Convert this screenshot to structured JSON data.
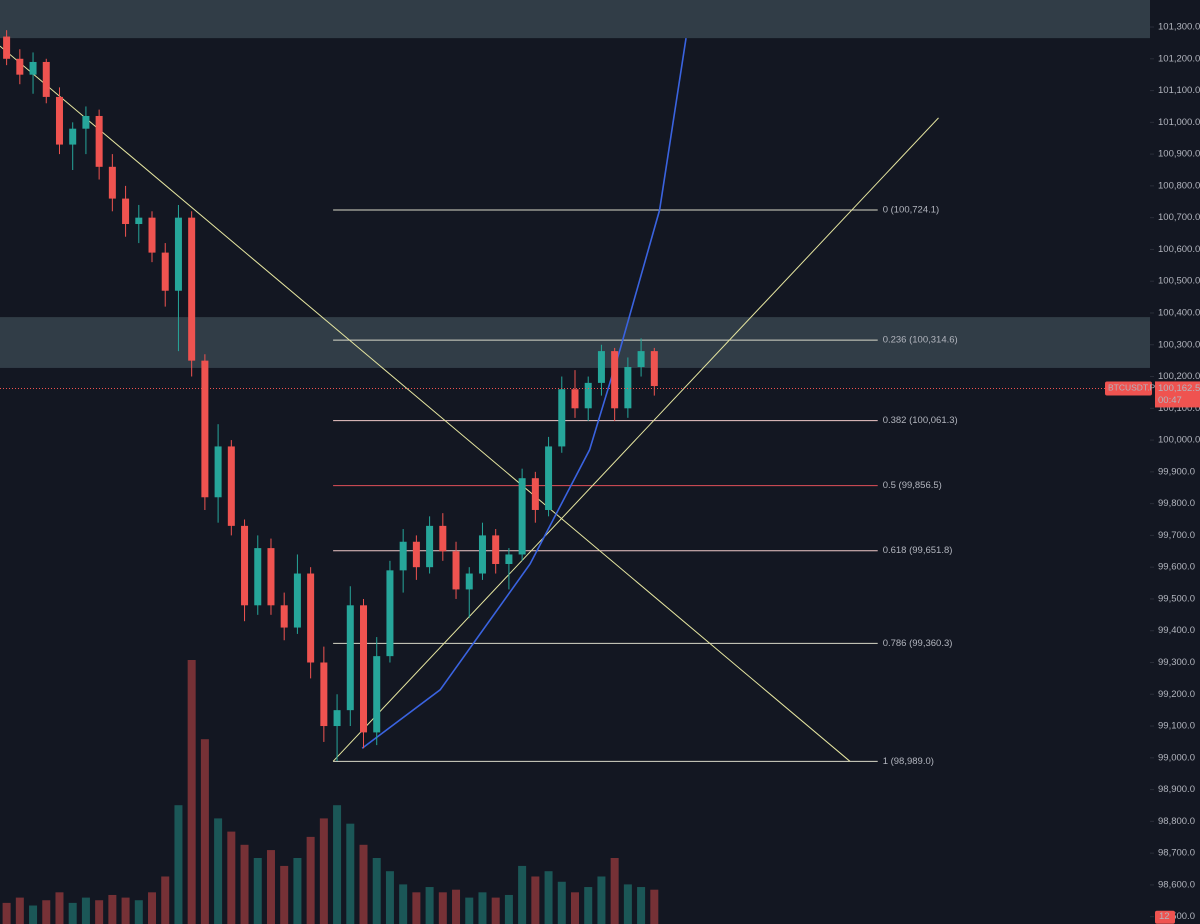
{
  "chart_data": {
    "type": "candlestick",
    "symbol": "BTCUSDT.P",
    "last_price": {
      "value": 100162.5,
      "label": "100,162.5"
    },
    "countdown": "00:47",
    "badge": "12",
    "ylim": [
      98477,
      101385
    ],
    "xlim": [
      0,
      87
    ],
    "vlim": [
      0,
      100
    ],
    "up_color": "#26a69a",
    "down_color": "#ef5350",
    "yticks": [
      {
        "value": 98500,
        "label": "98,500.0"
      },
      {
        "value": 98600,
        "label": "98,600.0"
      },
      {
        "value": 98700,
        "label": "98,700.0"
      },
      {
        "value": 98800,
        "label": "98,800.0"
      },
      {
        "value": 98900,
        "label": "98,900.0"
      },
      {
        "value": 99000,
        "label": "99,000.0"
      },
      {
        "value": 99100,
        "label": "99,100.0"
      },
      {
        "value": 99200,
        "label": "99,200.0"
      },
      {
        "value": 99300,
        "label": "99,300.0"
      },
      {
        "value": 99400,
        "label": "99,400.0"
      },
      {
        "value": 99500,
        "label": "99,500.0"
      },
      {
        "value": 99600,
        "label": "99,600.0"
      },
      {
        "value": 99700,
        "label": "99,700.0"
      },
      {
        "value": 99800,
        "label": "99,800.0"
      },
      {
        "value": 99900,
        "label": "99,900.0"
      },
      {
        "value": 100000,
        "label": "100,000.0"
      },
      {
        "value": 100100,
        "label": "100,100.0"
      },
      {
        "value": 100200,
        "label": "100,200.0"
      },
      {
        "value": 100300,
        "label": "100,300.0"
      },
      {
        "value": 100400,
        "label": "100,400.0"
      },
      {
        "value": 100500,
        "label": "100,500.0"
      },
      {
        "value": 100600,
        "label": "100,600.0"
      },
      {
        "value": 100700,
        "label": "100,700.0"
      },
      {
        "value": 100800,
        "label": "100,800.0"
      },
      {
        "value": 100900,
        "label": "100,900.0"
      },
      {
        "value": 101000,
        "label": "101,000.0"
      },
      {
        "value": 101100,
        "label": "101,100.0"
      },
      {
        "value": 101200,
        "label": "101,200.0"
      },
      {
        "value": 101300,
        "label": "101,300.0"
      }
    ],
    "open": [
      101270,
      101200,
      101150,
      101190,
      101080,
      100930,
      100980,
      101020,
      100860,
      100760,
      100680,
      100700,
      100590,
      100470,
      100700,
      100250,
      99820,
      99980,
      99730,
      99480,
      99660,
      99480,
      99410,
      99580,
      99300,
      99100,
      99150,
      99480,
      99080,
      99320,
      99590,
      99680,
      99600,
      99730,
      99650,
      99530,
      99580,
      99700,
      99610,
      99640,
      99880,
      99780,
      99980,
      100160,
      100100,
      100180,
      100280,
      100100,
      100230,
      100280
    ],
    "high": [
      101290,
      101230,
      101220,
      101200,
      101110,
      101000,
      101050,
      101040,
      100900,
      100800,
      100740,
      100720,
      100620,
      100740,
      100720,
      100270,
      100050,
      100000,
      99750,
      99700,
      99690,
      99520,
      99640,
      99600,
      99350,
      99200,
      99540,
      99500,
      99380,
      99620,
      99720,
      99700,
      99760,
      99770,
      99680,
      99600,
      99740,
      99720,
      99660,
      99910,
      99900,
      100010,
      100200,
      100220,
      100200,
      100300,
      100290,
      100260,
      100320,
      100290
    ],
    "low": [
      101180,
      101120,
      101090,
      101060,
      100900,
      100850,
      100900,
      100820,
      100720,
      100640,
      100620,
      100560,
      100420,
      100280,
      100200,
      99780,
      99740,
      99700,
      99430,
      99450,
      99450,
      99370,
      99390,
      99250,
      99050,
      98990,
      99100,
      99030,
      99040,
      99300,
      99520,
      99560,
      99580,
      99620,
      99500,
      99440,
      99560,
      99580,
      99530,
      99620,
      99740,
      99760,
      99960,
      100070,
      100060,
      100140,
      100060,
      100070,
      100200,
      100140
    ],
    "close": [
      101200,
      101150,
      101190,
      101080,
      100930,
      100980,
      101020,
      100860,
      100760,
      100680,
      100700,
      100590,
      100470,
      100700,
      100250,
      99820,
      99980,
      99730,
      99480,
      99660,
      99480,
      99410,
      99580,
      99300,
      99100,
      99150,
      99480,
      99080,
      99320,
      99590,
      99680,
      99600,
      99730,
      99650,
      99530,
      99580,
      99700,
      99610,
      99640,
      99880,
      99780,
      99980,
      100160,
      100100,
      100180,
      100280,
      100100,
      100230,
      100280,
      100170
    ],
    "volume": [
      8,
      10,
      7,
      9,
      12,
      8,
      10,
      9,
      11,
      10,
      9,
      12,
      18,
      45,
      100,
      70,
      40,
      35,
      30,
      25,
      28,
      22,
      25,
      33,
      40,
      45,
      38,
      30,
      25,
      20,
      15,
      12,
      14,
      12,
      13,
      10,
      12,
      10,
      11,
      22,
      18,
      20,
      16,
      12,
      14,
      18,
      25,
      15,
      14,
      13
    ],
    "zones": [
      {
        "from": 101265,
        "to": 101385
      },
      {
        "from": 100227,
        "to": 100387
      }
    ],
    "fib_levels": [
      {
        "label": "0 (100,724.1)",
        "value": 100724.1,
        "color": "#d8d8c8"
      },
      {
        "label": "0.236 (100,314.6)",
        "value": 100314.6,
        "color": "#d8d8c8"
      },
      {
        "label": "0.382 (100,061.3)",
        "value": 100061.3,
        "color": "#f0c8c8"
      },
      {
        "label": "0.5 (99,856.5)",
        "value": 99856.5,
        "color": "#e0505a"
      },
      {
        "label": "0.618 (99,651.8)",
        "value": 99651.8,
        "color": "#f0c8c8"
      },
      {
        "label": "0.786 (99,360.3)",
        "value": 99360.3,
        "color": "#d8d8c8"
      },
      {
        "label": "1 (98,989.0)",
        "value": 98989.0,
        "color": "#d8d8c8"
      }
    ],
    "fib_x": [
      25.2,
      66.4
    ],
    "trend_lines": [
      {
        "x": [
          0,
          64.3
        ],
        "y": [
          101240,
          98989
        ],
        "color": "#e6e6a0"
      },
      {
        "x": [
          25.2,
          71
        ],
        "y": [
          98989,
          101014
        ],
        "color": "#e6e6a0"
      }
    ],
    "curve": {
      "x": [
        27.4,
        33.3,
        40.1,
        44.6,
        46.9,
        49.9,
        51.9
      ],
      "y": [
        99030,
        99214,
        99610,
        99969,
        100284,
        100724,
        101265
      ],
      "color": "#3a63e0"
    }
  }
}
